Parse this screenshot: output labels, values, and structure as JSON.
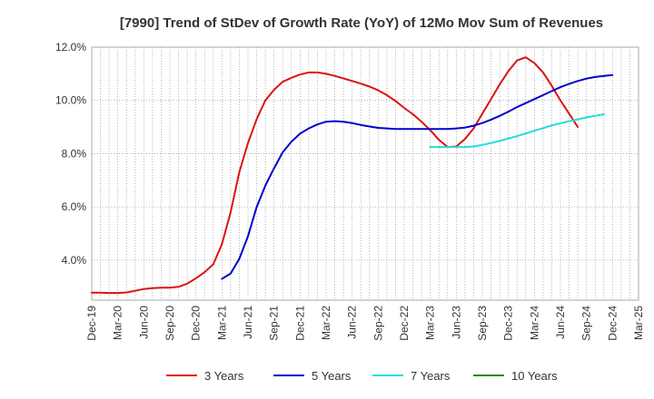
{
  "chart_data": {
    "type": "line",
    "title": "[7990]  Trend of StDev of Growth Rate (YoY) of 12Mo Mov Sum of Revenues",
    "xlabel": "",
    "ylabel": "",
    "ylim": [
      2.5,
      12.0
    ],
    "y_ticks": [
      4.0,
      6.0,
      8.0,
      10.0,
      12.0
    ],
    "y_tick_labels": [
      "4.0%",
      "6.0%",
      "8.0%",
      "10.0%",
      "12.0%"
    ],
    "x_ticks": [
      "Dec-19",
      "Mar-20",
      "Jun-20",
      "Sep-20",
      "Dec-20",
      "Mar-21",
      "Jun-21",
      "Sep-21",
      "Dec-21",
      "Mar-22",
      "Jun-22",
      "Sep-22",
      "Dec-22",
      "Mar-23",
      "Jun-23",
      "Sep-23",
      "Dec-23",
      "Mar-24",
      "Jun-24",
      "Sep-24",
      "Dec-24",
      "Mar-25"
    ],
    "grid": true,
    "legend_position": "bottom",
    "series": [
      {
        "name": "3 Years",
        "color": "#dd1111",
        "start_index": 0,
        "values": [
          2.78,
          2.78,
          2.77,
          2.77,
          2.79,
          2.85,
          2.92,
          2.95,
          2.97,
          2.97,
          3.0,
          3.12,
          3.32,
          3.55,
          3.85,
          4.6,
          5.8,
          7.3,
          8.4,
          9.3,
          10.0,
          10.4,
          10.7,
          10.85,
          10.97,
          11.05,
          11.05,
          11.0,
          10.92,
          10.83,
          10.73,
          10.63,
          10.52,
          10.38,
          10.2,
          9.98,
          9.72,
          9.48,
          9.2,
          8.88,
          8.52,
          8.25,
          8.27,
          8.55,
          8.95,
          9.5,
          10.05,
          10.6,
          11.1,
          11.5,
          11.62,
          11.4,
          11.05,
          10.55,
          10.0,
          9.5,
          9.0
        ]
      },
      {
        "name": "5 Years",
        "color": "#0000cc",
        "start_index": 15,
        "values": [
          3.3,
          3.5,
          4.05,
          4.9,
          6.0,
          6.8,
          7.45,
          8.05,
          8.45,
          8.75,
          8.95,
          9.1,
          9.2,
          9.22,
          9.2,
          9.15,
          9.08,
          9.02,
          8.97,
          8.95,
          8.93,
          8.93,
          8.93,
          8.93,
          8.93,
          8.93,
          8.93,
          8.95,
          8.98,
          9.05,
          9.15,
          9.28,
          9.42,
          9.58,
          9.75,
          9.9,
          10.05,
          10.2,
          10.35,
          10.5,
          10.62,
          10.73,
          10.82,
          10.88,
          10.92,
          10.95
        ]
      },
      {
        "name": "7 Years",
        "color": "#22dddd",
        "start_index": 39,
        "values": [
          8.25,
          8.25,
          8.25,
          8.25,
          8.25,
          8.27,
          8.33,
          8.4,
          8.48,
          8.57,
          8.66,
          8.76,
          8.86,
          8.96,
          9.06,
          9.14,
          9.22,
          9.29,
          9.36,
          9.42,
          9.48
        ]
      },
      {
        "name": "10 Years",
        "color": "#228822",
        "start_index": 0,
        "values": []
      }
    ]
  }
}
